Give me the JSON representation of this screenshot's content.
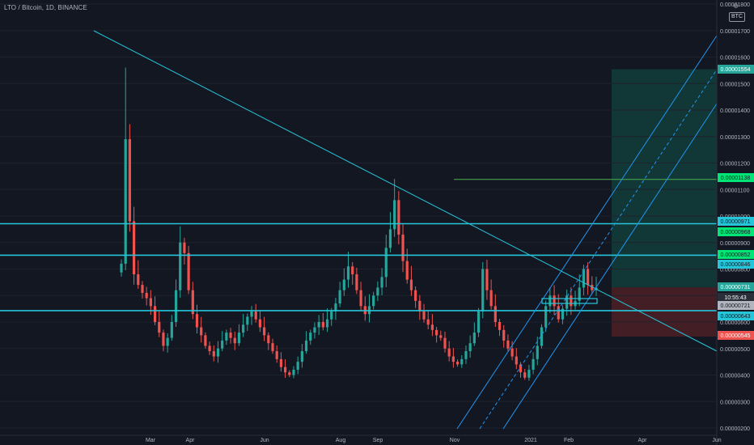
{
  "title": "LTO / Bitcoin, 1D, BINANCE",
  "currency_badge": "BTC",
  "colors": {
    "background": "#131722",
    "up": "#26a69a",
    "down": "#ef5350",
    "trendline": "#26c6da",
    "support": "#26c6da",
    "channel": "#2196f3",
    "target_line": "#4caf50",
    "target_zone": "#123b3a",
    "stop_zone": "#4a1f26",
    "axis_text": "#b2b5be"
  },
  "chart_data": {
    "type": "candlestick",
    "title": "LTO / Bitcoin, 1D, BINANCE",
    "ylim": [
      2e-06,
      1.9e-06
    ],
    "y_ticks": [
      "0.00000200",
      "0.00000300",
      "0.00000400",
      "0.00000500",
      "0.00000600",
      "0.00000700",
      "0.00000800",
      "0.00000900",
      "0.00001000",
      "0.00001100",
      "0.00001200",
      "0.00001300",
      "0.00001400",
      "0.00001500",
      "0.00001600",
      "0.00001700",
      "0.00001800"
    ],
    "x_ticks": [
      "Mar",
      "Apr",
      "Jun",
      "Aug",
      "Sep",
      "Nov",
      "2021",
      "Feb",
      "Apr",
      "Jun"
    ],
    "price_labels": [
      {
        "value": "0.00001554",
        "kind": "target"
      },
      {
        "value": "0.00001138",
        "kind": "green"
      },
      {
        "value": "0.00000971",
        "kind": "cyan"
      },
      {
        "value": "0.00000968",
        "kind": "green"
      },
      {
        "value": "0.00000852",
        "kind": "green"
      },
      {
        "value": "0.00000846",
        "kind": "cyan"
      },
      {
        "value": "0.00000731",
        "kind": "last"
      },
      {
        "value": "10:55:43",
        "kind": "countdown"
      },
      {
        "value": "0.00000721",
        "kind": "white"
      },
      {
        "value": "0.00000643",
        "kind": "cyan"
      },
      {
        "value": "0.00000545",
        "kind": "stop"
      }
    ],
    "lines": {
      "resistance": [
        9.71e-06,
        8.52e-06
      ],
      "support": [
        6.43e-06
      ],
      "target": 1.138e-05,
      "target_zone": [
        7.31e-06,
        1.554e-05
      ],
      "stop_zone": [
        5.45e-06,
        7.31e-06
      ]
    },
    "candles_close": [
      8.2e-06,
      1.29e-05,
      9.8e-06,
      7.8e-06,
      7.4e-06,
      7.1e-06,
      6.9e-06,
      6.6e-06,
      6e-06,
      5.6e-06,
      5.1e-06,
      5.4e-06,
      6e-06,
      7.2e-06,
      9e-06,
      8.6e-06,
      7.2e-06,
      6.3e-06,
      5.8e-06,
      5.5e-06,
      5.1e-06,
      4.9e-06,
      4.7e-06,
      5e-06,
      5.3e-06,
      5.6e-06,
      5.4e-06,
      5.2e-06,
      5.6e-06,
      5.9e-06,
      6.2e-06,
      6.4e-06,
      6.1e-06,
      5.8e-06,
      5.5e-06,
      5.2e-06,
      4.9e-06,
      4.6e-06,
      4.3e-06,
      4.1e-06,
      4e-06,
      4.2e-06,
      4.5e-06,
      4.9e-06,
      5.3e-06,
      5.6e-06,
      5.8e-06,
      6e-06,
      5.8e-06,
      6.1e-06,
      6.4e-06,
      6.7e-06,
      7.2e-06,
      7.6e-06,
      8.1e-06,
      7.8e-06,
      7.2e-06,
      6.6e-06,
      6.3e-06,
      6.6e-06,
      7e-06,
      7.3e-06,
      7.7e-06,
      8.8e-06,
      9.5e-06,
      1.06e-05,
      9.3e-06,
      8.3e-06,
      7.6e-06,
      7.2e-06,
      6.8e-06,
      6.4e-06,
      6.1e-06,
      5.9e-06,
      5.7e-06,
      5.5e-06,
      5.4e-06,
      5e-06,
      4.7e-06,
      4.5e-06,
      4.4e-06,
      4.6e-06,
      4.9e-06,
      5.2e-06,
      5.6e-06,
      6.4e-06,
      8e-06,
      7.2e-06,
      6.6e-06,
      6e-06,
      5.7e-06,
      5.3e-06,
      5e-06,
      4.7e-06,
      4.4e-06,
      4.1e-06,
      3.9e-06,
      4.2e-06,
      4.6e-06,
      5.1e-06,
      5.8e-06,
      6.6e-06,
      7e-06,
      6.6e-06,
      6.1e-06,
      6.5e-06,
      7e-06,
      6.6e-06,
      6.8e-06,
      7.3e-06,
      8e-06,
      7.4e-06,
      7.2e-06,
      7.3e-06
    ]
  }
}
